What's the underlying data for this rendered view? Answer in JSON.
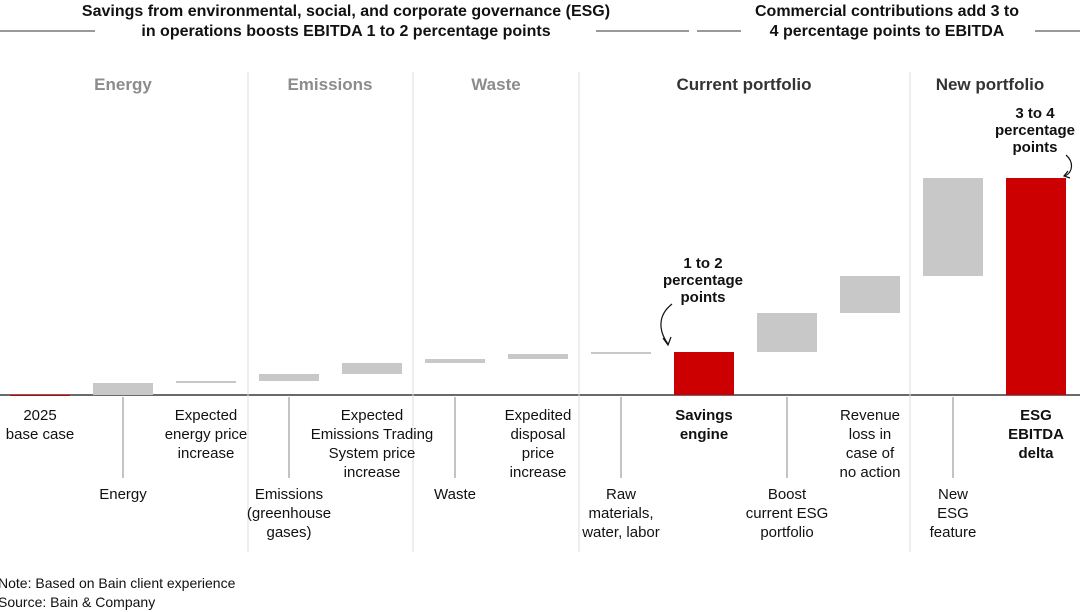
{
  "chart_data": {
    "type": "waterfall",
    "headers": [
      "Savings from environmental, social, and corporate governance (ESG)\nin operations boosts EBITDA 1 to 2 percentage points",
      "Commercial contributions add 3 to\n4 percentage points to EBITDA"
    ],
    "sections": [
      {
        "name": "Energy",
        "color": "#8c8c8c"
      },
      {
        "name": "Emissions",
        "color": "#8c8c8c"
      },
      {
        "name": "Waste",
        "color": "#8c8c8c"
      },
      {
        "name": "Current portfolio",
        "color": "#333333"
      },
      {
        "name": "New portfolio",
        "color": "#333333"
      }
    ],
    "categories": [
      "2025\nbase case",
      "Energy",
      "Expected\nenergy price\nincrease",
      "Emissions\n(greenhouse\ngases)",
      "Expected\nEmissions Trading\nSystem price\nincrease",
      "Waste",
      "Expedited\ndisposal\nprice\nincrease",
      "Raw\nmaterials,\nwater, labor",
      "Savings\nengine",
      "Boost\ncurrent ESG\nportfolio",
      "Revenue\nloss in\ncase of\nno action",
      "New\nESG\nfeature",
      "ESG\nEBITDA\ndelta"
    ],
    "values": [
      0,
      1.2,
      0.2,
      0.7,
      1.1,
      0.4,
      0.5,
      0.2,
      4.3,
      3.9,
      3.7,
      9.8,
      21.7
    ],
    "totals": [
      0,
      8,
      12
    ],
    "color": "#c8c8c8",
    "total_color": "#cc0000",
    "ylim": [
      0,
      21.7
    ],
    "annotations": [
      "1 to 2\npercentage\npoints",
      "3 to 4\npercentage\npoints"
    ],
    "notes": [
      "Note: Based on Bain client experience",
      "Source: Bain & Company"
    ]
  }
}
